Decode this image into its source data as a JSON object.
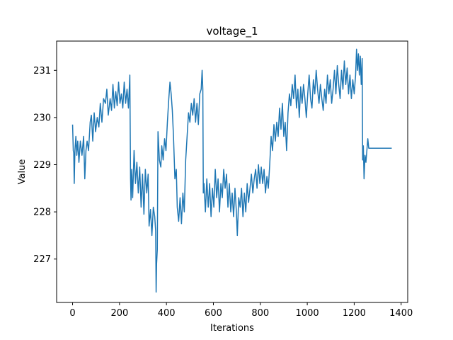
{
  "chart_data": {
    "type": "line",
    "title": "voltage_1",
    "xlabel": "Iterations",
    "ylabel": "Value",
    "xlim": [
      -68,
      1428
    ],
    "ylim": [
      226.08,
      231.62
    ],
    "xticks": [
      0,
      200,
      400,
      600,
      800,
      1000,
      1200,
      1400
    ],
    "yticks": [
      227,
      228,
      229,
      230,
      231
    ],
    "line_color": "#1f77b4",
    "series": [
      {
        "name": "voltage_1",
        "points": [
          [
            0,
            229.85
          ],
          [
            3,
            229.3
          ],
          [
            5,
            229.25
          ],
          [
            7,
            228.6
          ],
          [
            10,
            229.3
          ],
          [
            14,
            229.6
          ],
          [
            18,
            229.2
          ],
          [
            22,
            229.5
          ],
          [
            27,
            229.05
          ],
          [
            33,
            229.5
          ],
          [
            40,
            229.2
          ],
          [
            47,
            229.6
          ],
          [
            52,
            228.7
          ],
          [
            57,
            229.3
          ],
          [
            62,
            229.5
          ],
          [
            68,
            229.3
          ],
          [
            75,
            229.9
          ],
          [
            80,
            230.05
          ],
          [
            86,
            229.5
          ],
          [
            92,
            230.1
          ],
          [
            98,
            229.7
          ],
          [
            105,
            230.0
          ],
          [
            112,
            229.8
          ],
          [
            118,
            230.3
          ],
          [
            125,
            229.9
          ],
          [
            132,
            230.4
          ],
          [
            140,
            230.3
          ],
          [
            146,
            230.6
          ],
          [
            152,
            230.05
          ],
          [
            160,
            230.4
          ],
          [
            166,
            230.15
          ],
          [
            172,
            230.7
          ],
          [
            178,
            230.2
          ],
          [
            184,
            230.55
          ],
          [
            190,
            230.25
          ],
          [
            196,
            230.75
          ],
          [
            202,
            230.3
          ],
          [
            208,
            230.5
          ],
          [
            214,
            230.2
          ],
          [
            220,
            230.75
          ],
          [
            226,
            230.3
          ],
          [
            232,
            230.6
          ],
          [
            238,
            230.2
          ],
          [
            244,
            230.9
          ],
          [
            247,
            228.7
          ],
          [
            249,
            228.25
          ],
          [
            252,
            228.9
          ],
          [
            256,
            228.3
          ],
          [
            262,
            229.3
          ],
          [
            268,
            228.6
          ],
          [
            274,
            229.05
          ],
          [
            280,
            228.4
          ],
          [
            286,
            228.95
          ],
          [
            292,
            228.1
          ],
          [
            298,
            228.8
          ],
          [
            304,
            227.95
          ],
          [
            310,
            228.9
          ],
          [
            316,
            228.4
          ],
          [
            322,
            228.8
          ],
          [
            326,
            227.7
          ],
          [
            332,
            228.05
          ],
          [
            338,
            227.5
          ],
          [
            344,
            228.1
          ],
          [
            350,
            227.9
          ],
          [
            354,
            227.6
          ],
          [
            356,
            226.3
          ],
          [
            358,
            226.9
          ],
          [
            361,
            227.2
          ],
          [
            364,
            229.7
          ],
          [
            370,
            229.1
          ],
          [
            376,
            228.95
          ],
          [
            380,
            229.4
          ],
          [
            386,
            229.1
          ],
          [
            392,
            229.55
          ],
          [
            398,
            229.3
          ],
          [
            404,
            229.9
          ],
          [
            410,
            230.4
          ],
          [
            415,
            230.75
          ],
          [
            420,
            230.5
          ],
          [
            425,
            230.15
          ],
          [
            430,
            229.6
          ],
          [
            436,
            228.7
          ],
          [
            442,
            228.9
          ],
          [
            446,
            228.1
          ],
          [
            452,
            227.8
          ],
          [
            458,
            228.3
          ],
          [
            464,
            227.75
          ],
          [
            470,
            228.4
          ],
          [
            476,
            228.0
          ],
          [
            482,
            229.1
          ],
          [
            488,
            229.6
          ],
          [
            494,
            230.1
          ],
          [
            500,
            229.9
          ],
          [
            506,
            230.3
          ],
          [
            512,
            230.05
          ],
          [
            518,
            230.4
          ],
          [
            524,
            229.9
          ],
          [
            530,
            230.3
          ],
          [
            536,
            229.85
          ],
          [
            542,
            230.5
          ],
          [
            548,
            230.6
          ],
          [
            552,
            231.0
          ],
          [
            555,
            230.6
          ],
          [
            557,
            228.4
          ],
          [
            560,
            228.6
          ],
          [
            566,
            228.0
          ],
          [
            572,
            228.7
          ],
          [
            578,
            228.1
          ],
          [
            584,
            228.6
          ],
          [
            590,
            227.9
          ],
          [
            596,
            228.5
          ],
          [
            602,
            228.1
          ],
          [
            608,
            228.9
          ],
          [
            614,
            228.3
          ],
          [
            620,
            228.7
          ],
          [
            626,
            228.0
          ],
          [
            632,
            228.6
          ],
          [
            638,
            228.3
          ],
          [
            644,
            228.9
          ],
          [
            650,
            228.5
          ],
          [
            656,
            228.8
          ],
          [
            662,
            228.1
          ],
          [
            668,
            228.6
          ],
          [
            674,
            228.0
          ],
          [
            680,
            228.4
          ],
          [
            686,
            227.9
          ],
          [
            692,
            228.5
          ],
          [
            698,
            228.0
          ],
          [
            702,
            227.5
          ],
          [
            708,
            228.3
          ],
          [
            714,
            228.1
          ],
          [
            720,
            228.5
          ],
          [
            726,
            227.9
          ],
          [
            732,
            228.4
          ],
          [
            738,
            228.0
          ],
          [
            744,
            228.6
          ],
          [
            750,
            228.2
          ],
          [
            756,
            228.5
          ],
          [
            762,
            228.8
          ],
          [
            768,
            228.4
          ],
          [
            774,
            228.7
          ],
          [
            780,
            228.9
          ],
          [
            786,
            228.5
          ],
          [
            792,
            229.0
          ],
          [
            798,
            228.6
          ],
          [
            804,
            228.95
          ],
          [
            810,
            228.6
          ],
          [
            816,
            228.9
          ],
          [
            822,
            228.4
          ],
          [
            828,
            228.75
          ],
          [
            834,
            228.5
          ],
          [
            840,
            229.0
          ],
          [
            846,
            229.6
          ],
          [
            852,
            229.3
          ],
          [
            858,
            229.85
          ],
          [
            864,
            229.5
          ],
          [
            870,
            229.9
          ],
          [
            876,
            229.6
          ],
          [
            882,
            230.2
          ],
          [
            888,
            229.75
          ],
          [
            894,
            230.3
          ],
          [
            900,
            229.6
          ],
          [
            906,
            229.9
          ],
          [
            912,
            229.3
          ],
          [
            918,
            230.1
          ],
          [
            924,
            230.5
          ],
          [
            930,
            230.25
          ],
          [
            936,
            230.7
          ],
          [
            942,
            230.4
          ],
          [
            948,
            230.9
          ],
          [
            954,
            230.2
          ],
          [
            960,
            230.6
          ],
          [
            966,
            230.0
          ],
          [
            972,
            230.65
          ],
          [
            978,
            230.3
          ],
          [
            984,
            230.7
          ],
          [
            990,
            230.4
          ],
          [
            996,
            230.0
          ],
          [
            1002,
            230.5
          ],
          [
            1008,
            230.9
          ],
          [
            1014,
            230.4
          ],
          [
            1020,
            230.2
          ],
          [
            1026,
            230.8
          ],
          [
            1032,
            230.5
          ],
          [
            1038,
            231.0
          ],
          [
            1044,
            230.6
          ],
          [
            1050,
            230.3
          ],
          [
            1056,
            230.7
          ],
          [
            1062,
            230.4
          ],
          [
            1068,
            230.15
          ],
          [
            1074,
            230.6
          ],
          [
            1080,
            230.3
          ],
          [
            1086,
            230.9
          ],
          [
            1092,
            230.5
          ],
          [
            1098,
            230.8
          ],
          [
            1104,
            230.3
          ],
          [
            1110,
            230.6
          ],
          [
            1116,
            231.0
          ],
          [
            1122,
            230.5
          ],
          [
            1128,
            231.1
          ],
          [
            1134,
            230.7
          ],
          [
            1140,
            230.4
          ],
          [
            1146,
            231.0
          ],
          [
            1152,
            230.6
          ],
          [
            1158,
            231.2
          ],
          [
            1164,
            230.7
          ],
          [
            1170,
            231.05
          ],
          [
            1176,
            230.5
          ],
          [
            1182,
            230.9
          ],
          [
            1188,
            230.4
          ],
          [
            1194,
            230.8
          ],
          [
            1200,
            230.5
          ],
          [
            1206,
            230.9
          ],
          [
            1210,
            231.45
          ],
          [
            1214,
            231.0
          ],
          [
            1218,
            231.35
          ],
          [
            1222,
            230.9
          ],
          [
            1226,
            231.3
          ],
          [
            1230,
            230.7
          ],
          [
            1234,
            231.25
          ],
          [
            1236,
            229.1
          ],
          [
            1239,
            229.4
          ],
          [
            1242,
            228.7
          ],
          [
            1246,
            229.2
          ],
          [
            1250,
            229.05
          ],
          [
            1254,
            229.3
          ],
          [
            1258,
            229.55
          ],
          [
            1262,
            229.35
          ],
          [
            1300,
            229.35
          ],
          [
            1330,
            229.35
          ],
          [
            1360,
            229.35
          ]
        ]
      }
    ]
  }
}
